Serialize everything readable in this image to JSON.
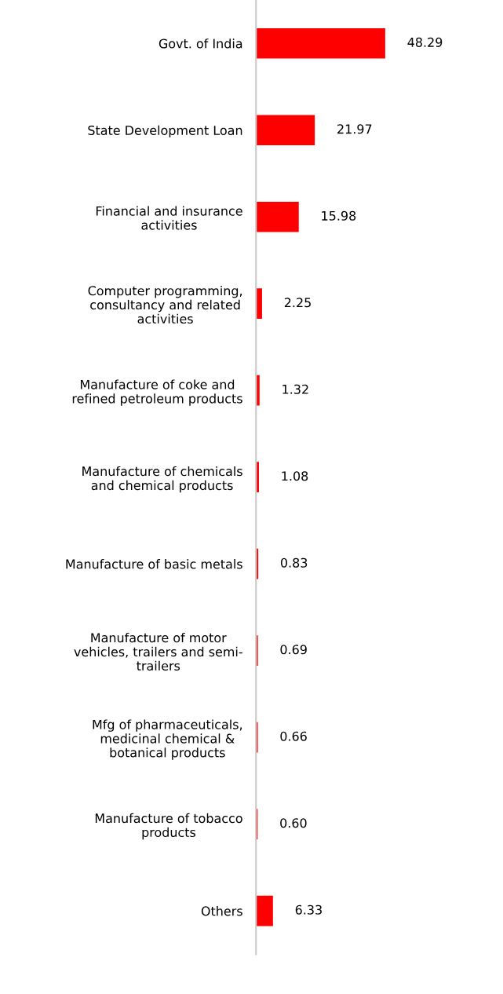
{
  "chart_data": {
    "type": "bar",
    "orientation": "horizontal",
    "categories": [
      "Govt. of India",
      "State Development Loan",
      "Financial and insurance\nactivities",
      "Computer programming,\nconsultancy and related\nactivities",
      "Manufacture of coke and\nrefined petroleum products",
      "Manufacture of chemicals\nand chemical products",
      "Manufacture of basic metals",
      "Manufacture of motor\nvehicles, trailers and semi-\ntrailers",
      "Mfg of pharmaceuticals,\nmedicinal chemical &\nbotanical products",
      "Manufacture of tobacco\nproducts",
      "Others"
    ],
    "values": [
      48.29,
      21.97,
      15.98,
      2.25,
      1.32,
      1.08,
      0.83,
      0.69,
      0.66,
      0.6,
      6.33
    ],
    "value_labels": [
      "48.29",
      "21.97",
      "15.98",
      "2.25",
      "1.32",
      "1.08",
      "0.83",
      "0.69",
      "0.66",
      "0.60",
      "6.33"
    ],
    "color": "#ff0000",
    "grid": false,
    "legend": false
  }
}
